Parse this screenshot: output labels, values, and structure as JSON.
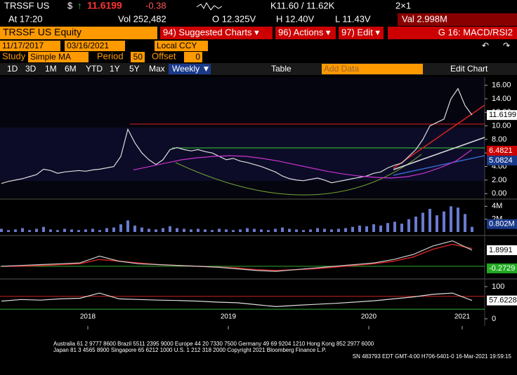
{
  "header": {
    "ticker": "TRSSF US",
    "currency": "$",
    "arrow": "↑",
    "last": "11.6199",
    "change": "-0.38",
    "quote": "K11.60 / 11.62K",
    "size": "2×1",
    "time": "At 17:20",
    "volume": "Vol 252,482",
    "open": "O 12.325V",
    "high": "H 12.40V",
    "low": "L 11.43V",
    "value": "Val 2.998M"
  },
  "toolbar": {
    "security": "TRSSF US Equity",
    "menus": [
      "94) Suggested Charts ▾",
      "96) Actions ▾",
      "97) Edit ▾"
    ],
    "chart_name": "G 16: MACD/RSI2"
  },
  "range": {
    "start": "11/17/2017",
    "end": "03/16/2021",
    "currency": "Local CCY"
  },
  "study": {
    "label": "Study",
    "name": "Simple MA",
    "period_label": "Period",
    "period": "50",
    "offset_label": "Offset",
    "offset": "0"
  },
  "periods": [
    "1D",
    "3D",
    "1M",
    "6M",
    "YTD",
    "1Y",
    "5Y",
    "Max"
  ],
  "frequency": "Weekly ▼",
  "table": "Table",
  "add_data": "Add Data",
  "edit_chart": "Edit Chart",
  "price_panel": {
    "ylim": [
      -0.6,
      17.2
    ],
    "yticks": [
      {
        "value": 16,
        "label": "16.00"
      },
      {
        "value": 14,
        "label": "14.00"
      },
      {
        "value": 12,
        "label": "12.00"
      },
      {
        "value": 10,
        "label": "10.00"
      },
      {
        "value": 8,
        "label": "8.00"
      },
      {
        "value": 6,
        "label": "6.00"
      },
      {
        "value": 4,
        "label": "4.00"
      },
      {
        "value": 2,
        "label": "2.00"
      },
      {
        "value": 0,
        "label": "0.00"
      }
    ],
    "last_label": "11.6199",
    "ma_label": "6.4821",
    "study_label": "5.0824",
    "values": [
      1.5,
      1.8,
      2.0,
      2.2,
      2.5,
      2.8,
      3.6,
      3.4,
      3.0,
      3.2,
      3.3,
      3.4,
      3.3,
      3.5,
      3.6,
      3.8,
      4.0,
      5.5,
      9.5,
      7.5,
      6.0,
      5.0,
      4.3,
      5.0,
      6.5,
      6.8,
      6.5,
      6.3,
      6.5,
      6.2,
      6.0,
      5.5,
      5.0,
      5.2,
      4.8,
      4.6,
      4.3,
      4.0,
      3.6,
      3.2,
      2.6,
      2.2,
      2.0,
      1.9,
      2.1,
      2.3,
      2.0,
      1.6,
      1.8,
      2.0,
      2.2,
      2.4,
      2.6,
      3.0,
      3.2,
      3.8,
      4.2,
      4.5,
      5.5,
      6.5,
      8.0,
      10.0,
      10.5,
      11.0,
      14.0,
      15.5,
      13.0,
      11.6
    ],
    "ma": [
      3.5,
      4.0,
      4.5,
      5.0,
      5.3,
      5.5,
      5.6,
      5.5,
      5.2,
      4.8,
      4.3,
      3.8,
      3.3,
      2.9,
      2.6,
      2.4,
      2.3,
      2.5,
      3.0,
      3.8,
      4.8,
      6.5
    ]
  },
  "volume_panel": {
    "ylim": [
      0,
      4.8
    ],
    "yticks": [
      {
        "value": 4,
        "label": "4M"
      },
      {
        "value": 2,
        "label": "2M"
      }
    ],
    "last_label": "0.802M",
    "values": [
      0.5,
      0.3,
      0.4,
      0.6,
      0.3,
      0.5,
      0.8,
      0.4,
      0.3,
      0.5,
      0.4,
      0.3,
      0.4,
      0.5,
      0.3,
      0.6,
      0.7,
      1.2,
      1.8,
      1.0,
      0.7,
      0.5,
      0.4,
      0.6,
      0.9,
      0.6,
      0.5,
      0.4,
      0.5,
      0.4,
      0.3,
      0.5,
      0.4,
      0.3,
      0.4,
      0.6,
      0.5,
      0.4,
      0.3,
      0.5,
      0.7,
      0.5,
      0.4,
      0.3,
      0.4,
      0.6,
      0.5,
      0.4,
      0.5,
      0.6,
      0.8,
      1.0,
      0.9,
      1.2,
      1.0,
      1.4,
      1.6,
      1.3,
      2.0,
      2.4,
      3.0,
      3.6,
      2.6,
      3.2,
      4.0,
      3.8,
      2.8,
      0.8
    ]
  },
  "macd_panel": {
    "ylim": [
      -1.25,
      3.3
    ],
    "last_label": "1.8991",
    "signal_label": "-0.2729",
    "values": [
      0.0,
      0.1,
      0.2,
      0.3,
      0.4,
      1.2,
      0.6,
      0.3,
      0.2,
      0.1,
      0.0,
      -0.1,
      -0.3,
      -0.5,
      -0.6,
      -0.4,
      -0.2,
      0.0,
      0.2,
      0.4,
      0.8,
      1.4,
      2.4,
      3.0,
      1.9
    ],
    "signal": [
      0.0,
      0.0,
      0.1,
      0.2,
      0.3,
      0.8,
      0.6,
      0.4,
      0.2,
      0.1,
      0.0,
      -0.1,
      -0.2,
      -0.4,
      -0.5,
      -0.4,
      -0.3,
      -0.1,
      0.1,
      0.3,
      0.6,
      1.1,
      2.0,
      2.6,
      2.1
    ]
  },
  "rsi_panel": {
    "ylim": [
      -22,
      115
    ],
    "yticks": [
      100,
      0
    ],
    "last_label": "57.6228",
    "values": [
      55,
      60,
      58,
      62,
      64,
      80,
      62,
      60,
      58,
      57,
      55,
      52,
      50,
      44,
      38,
      42,
      45,
      48,
      52,
      56,
      62,
      68,
      76,
      80,
      57
    ]
  },
  "x_labels": [
    "2018",
    "2019",
    "2020",
    "2021"
  ],
  "footer": {
    "line1": "Australia 61 2 9777 8600 Brazil 5511 2395 9000 Europe 44 20 7330 7500 Germany 49 69 9204 1210 Hong Kong 852 2977 6000",
    "line2": "Japan 81 3 4565 8900       Singapore 65 6212 1000        U.S. 1 212 318 2000              Copyright 2021 Bloomberg Finance L.P.",
    "line3": "SN 483793 EDT  GMT-4:00 H706-5401-0 16-Mar-2021 19:59:15"
  }
}
